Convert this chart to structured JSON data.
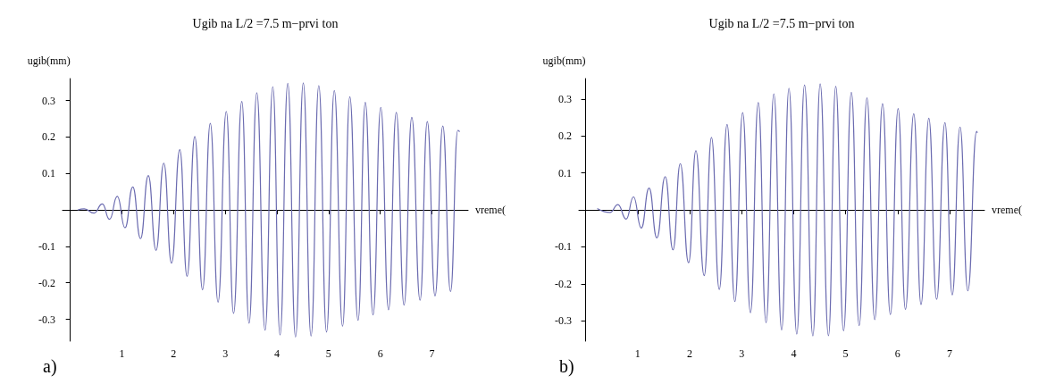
{
  "chart_data": [
    {
      "type": "line",
      "title": "Ugib na L/2 =7.5 m−prvi ton",
      "xlabel": "vreme(",
      "ylabel": "ugib(mm)",
      "annotations": [
        "a)"
      ],
      "marker": "none",
      "line_style": "solid",
      "xlim": [
        -0.15,
        7.7
      ],
      "ylim": [
        -0.36,
        0.36
      ],
      "xticks": [
        1,
        2,
        3,
        4,
        5,
        6,
        7
      ],
      "yticks": [
        -0.3,
        -0.2,
        -0.1,
        0.1,
        0.2,
        0.3
      ],
      "series": [
        {
          "color": "#6b6bb0",
          "x": [
            0.15,
            0.27,
            0.46,
            0.62,
            0.76,
            0.91,
            1.06,
            1.21,
            1.36,
            1.51,
            1.66,
            1.81,
            1.96,
            2.12,
            2.26,
            2.41,
            2.56,
            2.71,
            2.86,
            3.02,
            3.16,
            3.32,
            3.46,
            3.61,
            3.77,
            3.92,
            4.06,
            4.21,
            4.36,
            4.51,
            4.66,
            4.81,
            4.96,
            5.11,
            5.27,
            5.41,
            5.57,
            5.71,
            5.86,
            6.01,
            6.16,
            6.31,
            6.46,
            6.61,
            6.77,
            6.91,
            7.06,
            7.21,
            7.36,
            7.5,
            7.53
          ],
          "values": [
            0,
            0.003,
            -0.009,
            0.016,
            -0.026,
            0.037,
            -0.049,
            0.063,
            -0.079,
            0.094,
            -0.111,
            0.128,
            -0.146,
            0.165,
            -0.182,
            0.201,
            -0.219,
            0.237,
            -0.253,
            0.27,
            -0.284,
            0.297,
            -0.311,
            0.321,
            -0.33,
            0.338,
            -0.343,
            0.347,
            -0.349,
            0.348,
            -0.346,
            0.341,
            -0.335,
            0.327,
            -0.319,
            0.31,
            -0.303,
            0.295,
            -0.288,
            0.281,
            -0.274,
            0.267,
            -0.261,
            0.254,
            -0.248,
            0.242,
            -0.236,
            0.23,
            -0.224,
            0.218,
            0.215
          ]
        }
      ]
    },
    {
      "type": "line",
      "title": "Ugib na L/2 =7.5 m−prvi ton",
      "xlabel": "vreme(",
      "ylabel": "ugib(mm)",
      "annotations": [
        "b)"
      ],
      "marker": "none",
      "line_style": "solid",
      "xlim": [
        -0.13,
        7.67
      ],
      "ylim": [
        -0.355,
        0.355
      ],
      "xticks": [
        1,
        2,
        3,
        4,
        5,
        6,
        7
      ],
      "yticks": [
        -0.3,
        -0.2,
        -0.1,
        0.1,
        0.2,
        0.3
      ],
      "series": [
        {
          "color": "#6b6bb0",
          "x": [
            0.23,
            0.47,
            0.62,
            0.78,
            0.92,
            1.07,
            1.22,
            1.37,
            1.53,
            1.68,
            1.82,
            1.98,
            2.12,
            2.28,
            2.42,
            2.57,
            2.72,
            2.87,
            3.02,
            3.17,
            3.32,
            3.47,
            3.62,
            3.77,
            3.91,
            4.06,
            4.21,
            4.37,
            4.51,
            4.67,
            4.81,
            4.96,
            5.11,
            5.26,
            5.41,
            5.56,
            5.71,
            5.86,
            6.01,
            6.15,
            6.31,
            6.45,
            6.6,
            6.75,
            6.91,
            7.05,
            7.2,
            7.35,
            7.52,
            7.53
          ],
          "values": [
            0.003,
            -0.007,
            0.014,
            -0.025,
            0.035,
            -0.049,
            0.059,
            -0.076,
            0.09,
            -0.108,
            0.125,
            -0.143,
            0.16,
            -0.178,
            0.196,
            -0.215,
            0.231,
            -0.248,
            0.263,
            -0.278,
            0.29,
            -0.305,
            0.314,
            -0.325,
            0.329,
            -0.336,
            0.338,
            -0.341,
            0.341,
            -0.34,
            0.334,
            -0.327,
            0.318,
            -0.313,
            0.303,
            -0.297,
            0.287,
            -0.283,
            0.274,
            -0.269,
            0.26,
            -0.256,
            0.248,
            -0.242,
            0.236,
            -0.23,
            0.224,
            -0.219,
            0.212,
            0.209
          ]
        }
      ]
    }
  ]
}
